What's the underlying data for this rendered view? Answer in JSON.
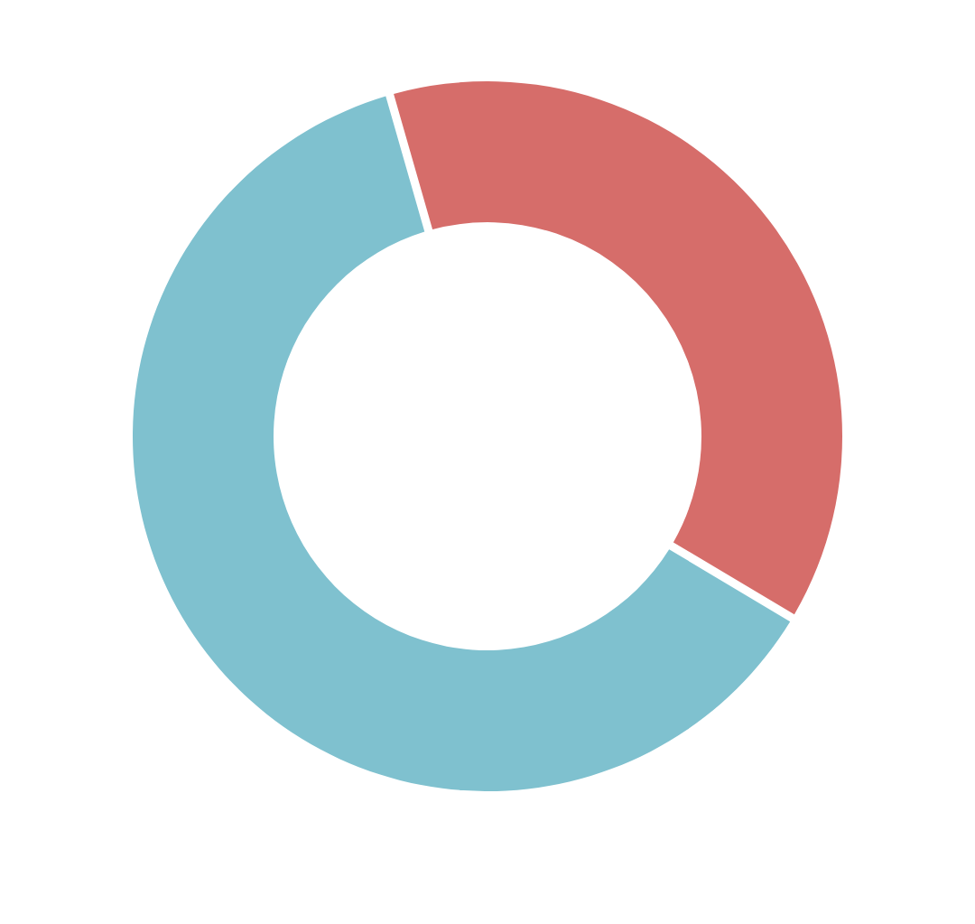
{
  "chart_data": {
    "type": "donut",
    "categories": [
      null,
      null
    ],
    "values": [
      38,
      62
    ],
    "colors": [
      "#d66d6a",
      "#7fc1cf"
    ]
  }
}
